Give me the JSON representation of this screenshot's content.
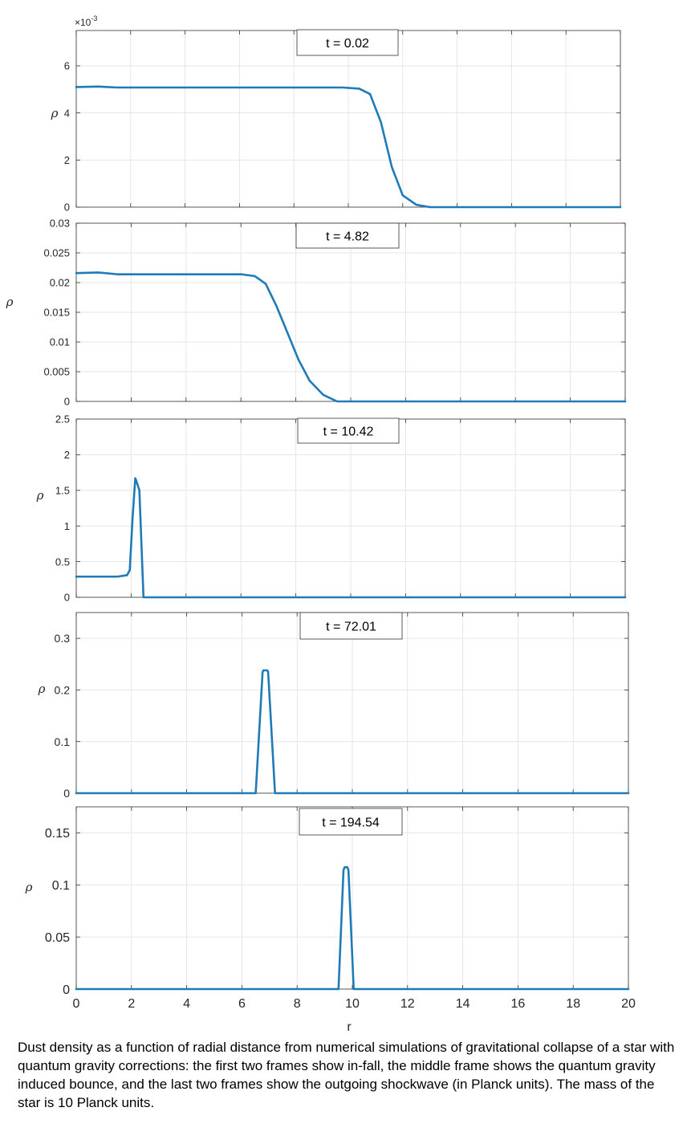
{
  "chart_data": [
    {
      "type": "line",
      "annotation": "t = 0.02",
      "ylabel": "ρ",
      "exponent_label": "×10",
      "exponent_power": "-3",
      "xlim": [
        0,
        20
      ],
      "ylim": [
        0,
        0.0075
      ],
      "yticks": [
        0,
        0.002,
        0.004,
        0.006
      ],
      "ytick_labels": [
        "0",
        "2",
        "4",
        "6"
      ],
      "xticks": [
        0,
        2,
        4,
        6,
        8,
        10,
        12,
        14,
        16,
        18,
        20
      ],
      "grid": true,
      "color": "#1f7ab8",
      "series": [
        {
          "x": [
            0,
            0.8,
            1.5,
            9.8,
            10.4,
            10.8,
            11.2,
            11.6,
            12,
            12.5,
            13,
            20
          ],
          "y": [
            0.0051,
            0.00512,
            0.00508,
            0.00508,
            0.00503,
            0.0048,
            0.0036,
            0.0017,
            0.0005,
            0.0001,
            0,
            0
          ]
        }
      ]
    },
    {
      "type": "line",
      "annotation": "t = 4.82",
      "ylabel": "ρ",
      "xlim": [
        0,
        20
      ],
      "ylim": [
        0,
        0.03
      ],
      "yticks": [
        0,
        0.005,
        0.01,
        0.015,
        0.02,
        0.025,
        0.03
      ],
      "ytick_labels": [
        "0",
        "0.005",
        "0.01",
        "0.015",
        "0.02",
        "0.025",
        "0.03"
      ],
      "xticks": [
        0,
        2,
        4,
        6,
        8,
        10,
        12,
        14,
        16,
        18,
        20
      ],
      "grid": true,
      "color": "#1f7ab8",
      "series": [
        {
          "x": [
            0,
            0.8,
            1.5,
            6,
            6.5,
            6.9,
            7.3,
            7.7,
            8.1,
            8.5,
            9,
            9.5,
            20
          ],
          "y": [
            0.0216,
            0.0217,
            0.0214,
            0.0214,
            0.0211,
            0.0198,
            0.016,
            0.0115,
            0.007,
            0.0035,
            0.0011,
            0,
            0
          ]
        }
      ]
    },
    {
      "type": "line",
      "annotation": "t = 10.42",
      "ylabel": "ρ",
      "xlim": [
        0,
        20
      ],
      "ylim": [
        0,
        2.5
      ],
      "yticks": [
        0,
        0.5,
        1,
        1.5,
        2,
        2.5
      ],
      "ytick_labels": [
        "0",
        "0.5",
        "1",
        "1.5",
        "2",
        "2.5"
      ],
      "xticks": [
        0,
        2,
        4,
        6,
        8,
        10,
        12,
        14,
        16,
        18,
        20
      ],
      "grid": true,
      "color": "#1f7ab8",
      "series": [
        {
          "x": [
            0,
            1.5,
            1.85,
            1.95,
            2.05,
            2.15,
            2.2,
            2.3,
            2.45,
            20
          ],
          "y": [
            0.29,
            0.29,
            0.31,
            0.38,
            1.1,
            1.67,
            1.62,
            1.5,
            0,
            0
          ]
        }
      ]
    },
    {
      "type": "line",
      "annotation": "t = 72.01",
      "ylabel": "ρ",
      "xlim": [
        0,
        20
      ],
      "ylim": [
        0,
        0.35
      ],
      "yticks": [
        0,
        0.1,
        0.2,
        0.3
      ],
      "ytick_labels": [
        "0",
        "0.1",
        "0.2",
        "0.3"
      ],
      "xticks": [
        0,
        2,
        4,
        6,
        8,
        10,
        12,
        14,
        16,
        18,
        20
      ],
      "grid": true,
      "color": "#1f7ab8",
      "series": [
        {
          "x": [
            0,
            6.5,
            6.75,
            6.78,
            6.92,
            6.95,
            7.2,
            20
          ],
          "y": [
            0,
            0,
            0.235,
            0.238,
            0.238,
            0.235,
            0,
            0
          ]
        }
      ]
    },
    {
      "type": "line",
      "annotation": "t = 194.54",
      "ylabel": "ρ",
      "xlabel": "r",
      "xlim": [
        0,
        20
      ],
      "ylim": [
        0,
        0.175
      ],
      "yticks": [
        0,
        0.05,
        0.1,
        0.15
      ],
      "ytick_labels": [
        "0",
        "0.05",
        "0.1",
        "0.15"
      ],
      "xticks": [
        0,
        2,
        4,
        6,
        8,
        10,
        12,
        14,
        16,
        18,
        20
      ],
      "xtick_labels": [
        "0",
        "2",
        "4",
        "6",
        "8",
        "10",
        "12",
        "14",
        "16",
        "18",
        "20"
      ],
      "grid": true,
      "color": "#1f7ab8",
      "series": [
        {
          "x": [
            0,
            9.5,
            9.68,
            9.72,
            9.82,
            9.86,
            10.05,
            20
          ],
          "y": [
            0,
            0,
            0.114,
            0.117,
            0.117,
            0.114,
            0,
            0
          ]
        }
      ]
    }
  ],
  "caption": "Dust density as a function of radial distance from numerical simulations of gravitational collapse of a star with quantum gravity corrections: the first two frames show in-fall, the middle frame shows the quantum gravity induced bounce, and the last two frames show the outgoing shockwave (in Planck units). The mass of the star is 10 Planck units."
}
